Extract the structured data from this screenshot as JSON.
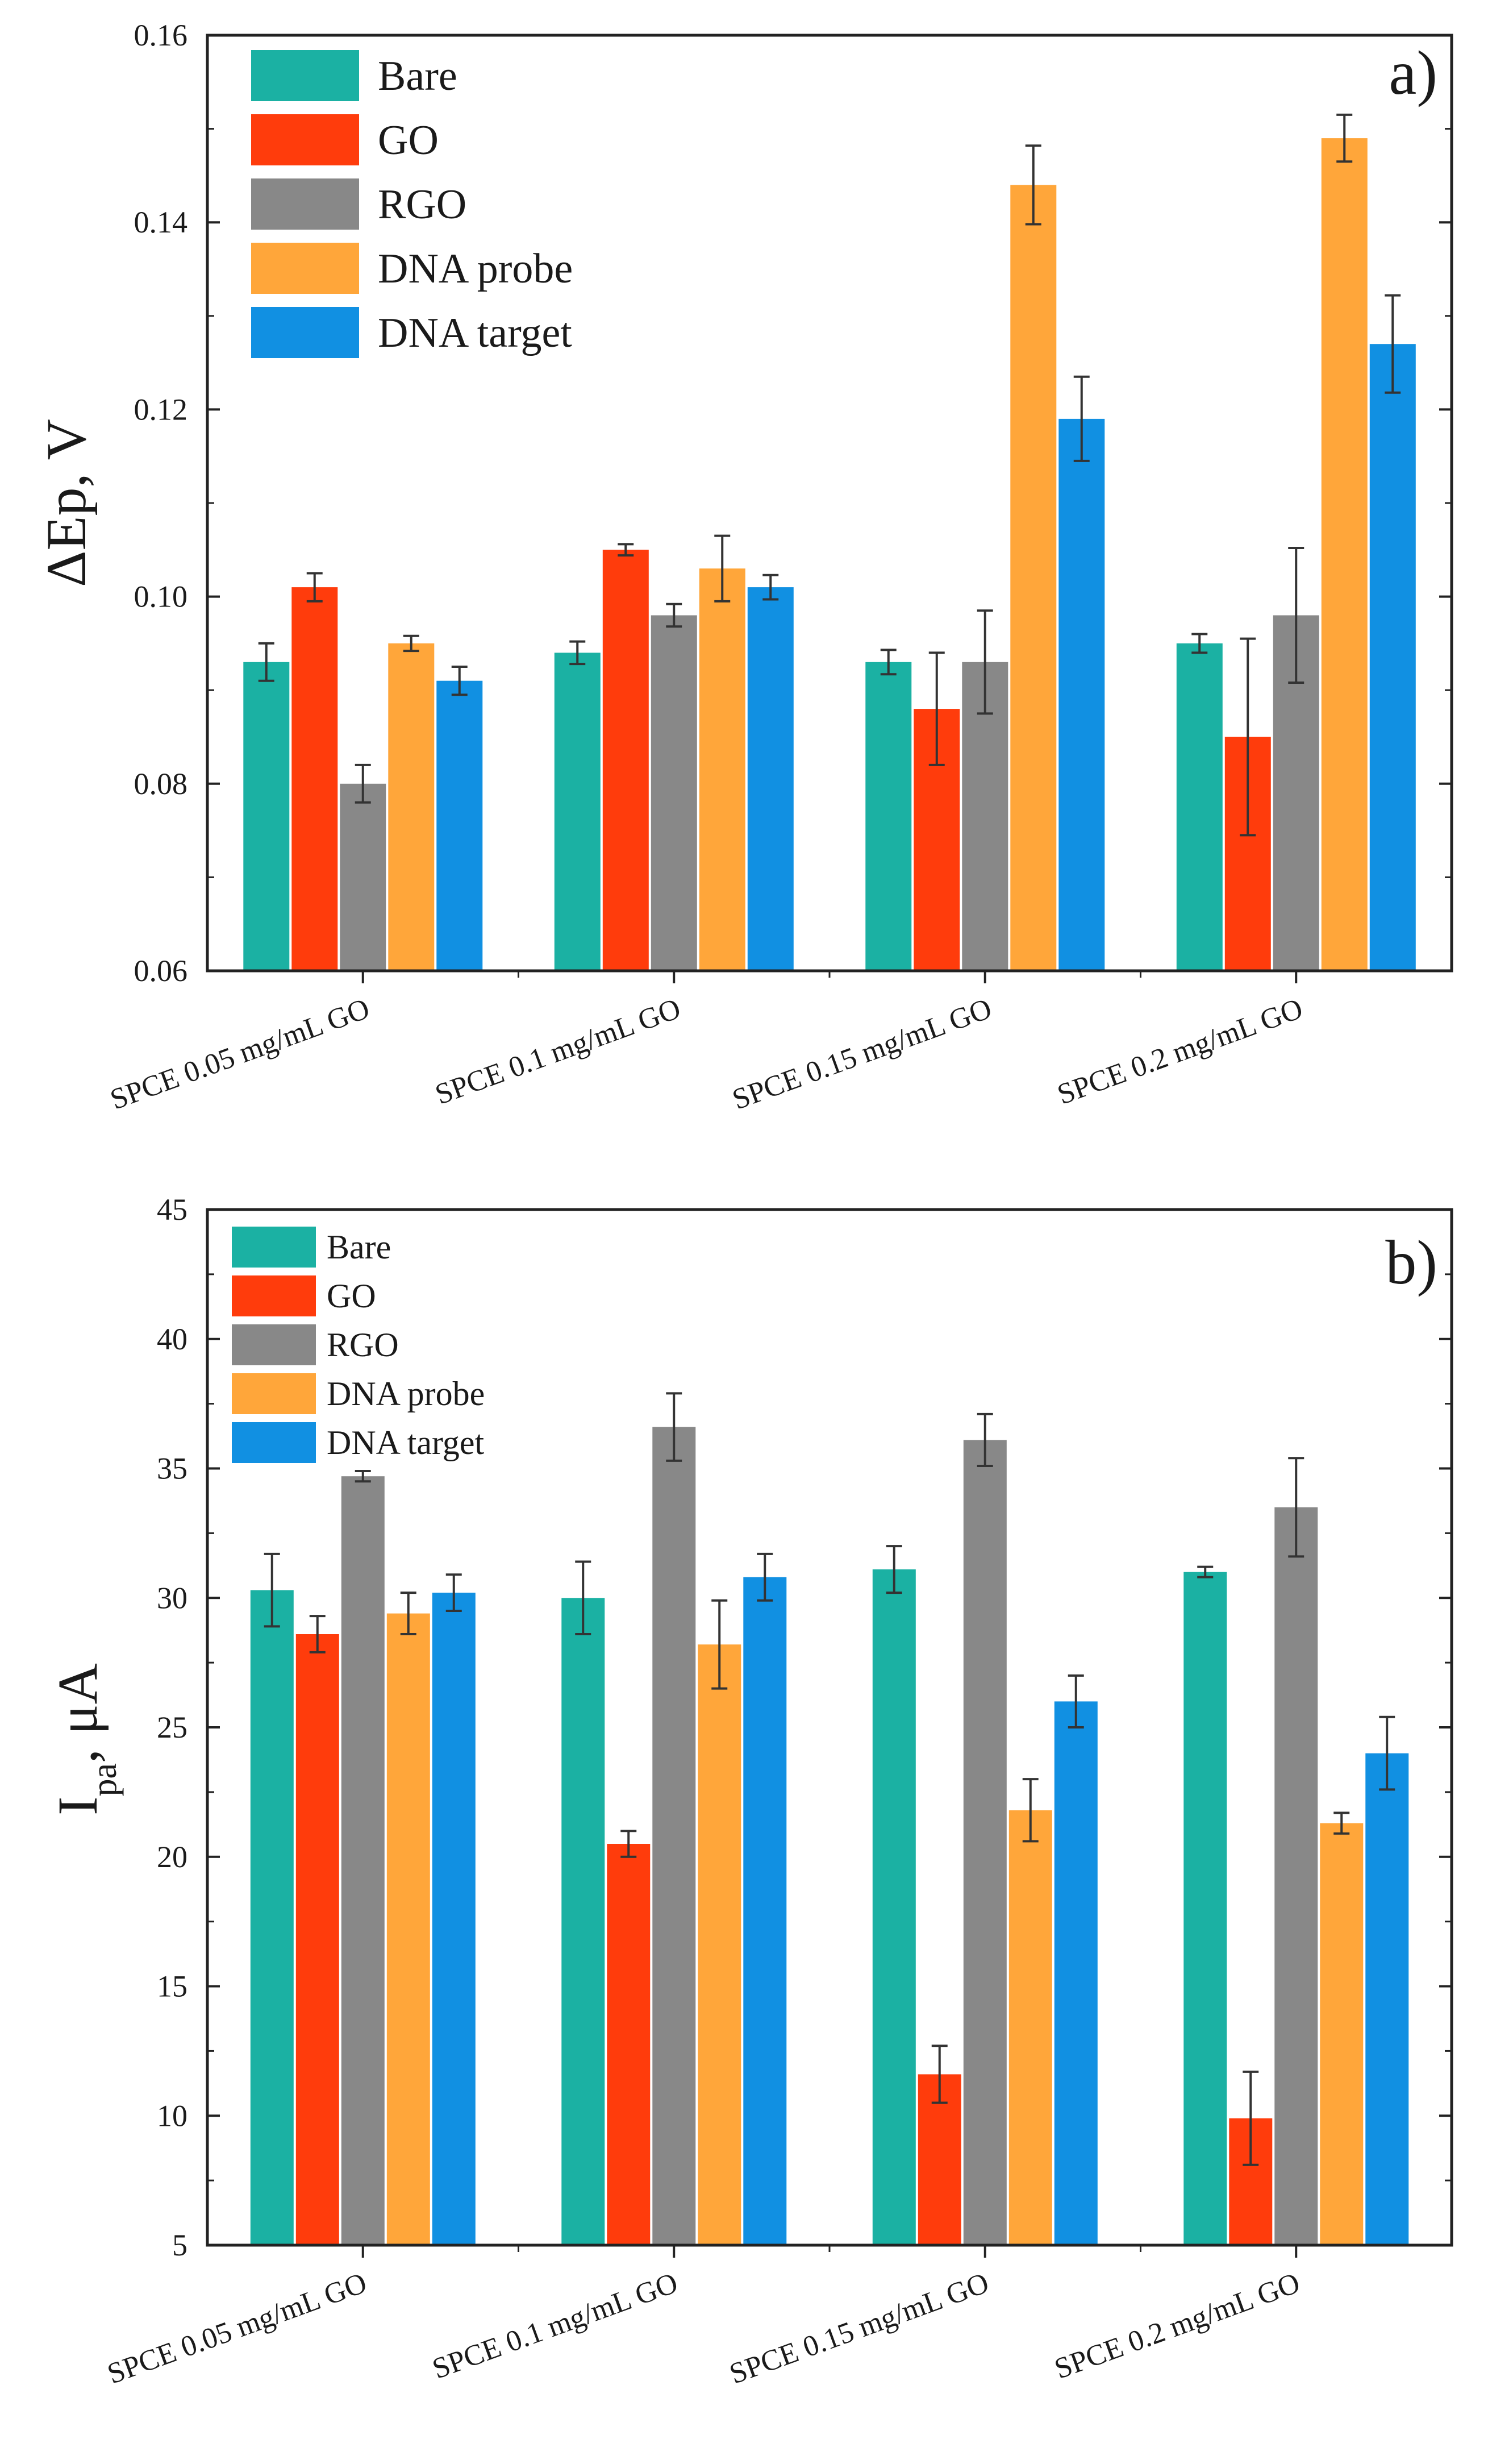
{
  "chart_data": [
    {
      "type": "bar",
      "panel_label": "a)",
      "title": "",
      "xlabel": "",
      "ylabel": "ΔEp, V",
      "ylim": [
        0.06,
        0.16
      ],
      "yticks": [
        0.06,
        0.08,
        0.1,
        0.12,
        0.14,
        0.16
      ],
      "ytick_labels": [
        "0.06",
        "0.08",
        "0.10",
        "0.12",
        "0.14",
        "0.16"
      ],
      "grid": false,
      "legend_position": "top-left",
      "categories": [
        "SPCE 0.05 mg/mL GO",
        "SPCE 0.1 mg/mL GO",
        "SPCE 0.15 mg/mL GO",
        "SPCE 0.2 mg/mL GO"
      ],
      "series": [
        {
          "name": "Bare",
          "color": "#1bb1a3",
          "values": [
            0.093,
            0.094,
            0.093,
            0.095
          ],
          "errors": [
            0.002,
            0.0012,
            0.0013,
            0.001
          ]
        },
        {
          "name": "GO",
          "color": "#ff3c0c",
          "values": [
            0.101,
            0.105,
            0.088,
            0.085
          ],
          "errors": [
            0.0015,
            0.0006,
            0.006,
            0.0105
          ]
        },
        {
          "name": "RGO",
          "color": "#888888",
          "values": [
            0.08,
            0.098,
            0.093,
            0.098
          ],
          "errors": [
            0.002,
            0.0012,
            0.0055,
            0.0072
          ]
        },
        {
          "name": "DNA probe",
          "color": "#ffa63a",
          "values": [
            0.095,
            0.103,
            0.144,
            0.149
          ],
          "errors": [
            0.0008,
            0.0035,
            0.0042,
            0.0025
          ]
        },
        {
          "name": "DNA target",
          "color": "#1190e2",
          "values": [
            0.091,
            0.101,
            0.119,
            0.127
          ],
          "errors": [
            0.0015,
            0.0013,
            0.0045,
            0.0052
          ]
        }
      ]
    },
    {
      "type": "bar",
      "panel_label": "b)",
      "title": "",
      "xlabel": "",
      "ylabel_main": "I",
      "ylabel_sub": "pa",
      "ylabel_tail": ", μA",
      "ylim": [
        5,
        45
      ],
      "yticks": [
        5,
        10,
        15,
        20,
        25,
        30,
        35,
        40,
        45
      ],
      "ytick_labels": [
        "5",
        "10",
        "15",
        "20",
        "25",
        "30",
        "35",
        "40",
        "45"
      ],
      "grid": false,
      "legend_position": "top-left",
      "categories": [
        "SPCE 0.05 mg/mL GO",
        "SPCE 0.1 mg/mL GO",
        "SPCE 0.15 mg/mL GO",
        "SPCE 0.2 mg/mL GO"
      ],
      "series": [
        {
          "name": "Bare",
          "color": "#1bb1a3",
          "values": [
            30.3,
            30.0,
            31.1,
            31.0
          ],
          "errors": [
            1.4,
            1.4,
            0.9,
            0.2
          ]
        },
        {
          "name": "GO",
          "color": "#ff3c0c",
          "values": [
            28.6,
            20.5,
            11.6,
            9.9
          ],
          "errors": [
            0.7,
            0.5,
            1.1,
            1.8
          ]
        },
        {
          "name": "RGO",
          "color": "#888888",
          "values": [
            34.7,
            36.6,
            36.1,
            33.5
          ],
          "errors": [
            0.2,
            1.3,
            1.0,
            1.9
          ]
        },
        {
          "name": "DNA probe",
          "color": "#ffa63a",
          "values": [
            29.4,
            28.2,
            21.8,
            21.3
          ],
          "errors": [
            0.8,
            1.7,
            1.2,
            0.4
          ]
        },
        {
          "name": "DNA target",
          "color": "#1190e2",
          "values": [
            30.2,
            30.8,
            26.0,
            24.0
          ],
          "errors": [
            0.7,
            0.9,
            1.0,
            1.4
          ]
        }
      ]
    }
  ]
}
